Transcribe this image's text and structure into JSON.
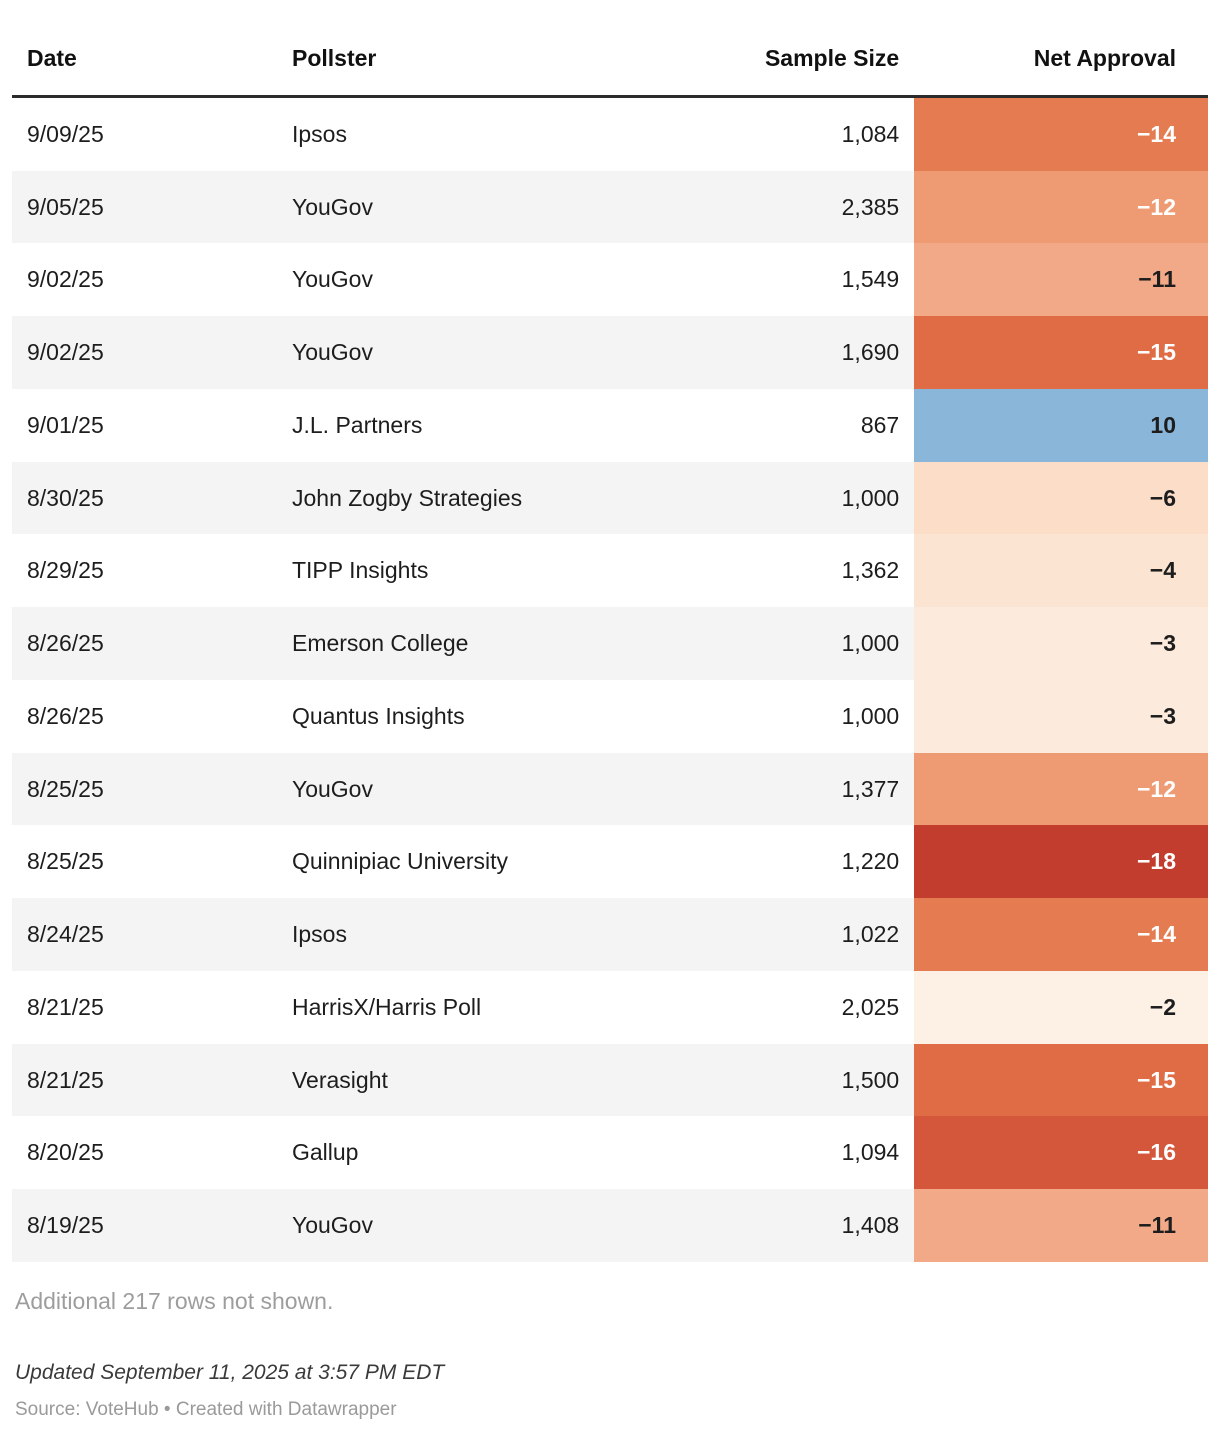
{
  "chart_data": {
    "type": "table",
    "columns": [
      "Date",
      "Pollster",
      "Sample Size",
      "Net Approval"
    ],
    "rows": [
      {
        "date": "9/09/25",
        "pollster": "Ipsos",
        "sample_size": "1,084",
        "net_approval": -14,
        "net_approval_display": "−14",
        "cell_color": "#e57c51",
        "text_color": "#ffffff"
      },
      {
        "date": "9/05/25",
        "pollster": "YouGov",
        "sample_size": "2,385",
        "net_approval": -12,
        "net_approval_display": "−12",
        "cell_color": "#ee9b73",
        "text_color": "#ffffff"
      },
      {
        "date": "9/02/25",
        "pollster": "YouGov",
        "sample_size": "1,549",
        "net_approval": -11,
        "net_approval_display": "−11",
        "cell_color": "#f2a987",
        "text_color": "#1d1d1d"
      },
      {
        "date": "9/02/25",
        "pollster": "YouGov",
        "sample_size": "1,690",
        "net_approval": -15,
        "net_approval_display": "−15",
        "cell_color": "#e06c45",
        "text_color": "#ffffff"
      },
      {
        "date": "9/01/25",
        "pollster": "J.L. Partners",
        "sample_size": "867",
        "net_approval": 10,
        "net_approval_display": "10",
        "cell_color": "#8ab7d9",
        "text_color": "#1d1d1d"
      },
      {
        "date": "8/30/25",
        "pollster": "John Zogby Strategies",
        "sample_size": "1,000",
        "net_approval": -6,
        "net_approval_display": "−6",
        "cell_color": "#fbddc8",
        "text_color": "#1d1d1d"
      },
      {
        "date": "8/29/25",
        "pollster": "TIPP Insights",
        "sample_size": "1,362",
        "net_approval": -4,
        "net_approval_display": "−4",
        "cell_color": "#fbe4d2",
        "text_color": "#1d1d1d"
      },
      {
        "date": "8/26/25",
        "pollster": "Emerson College",
        "sample_size": "1,000",
        "net_approval": -3,
        "net_approval_display": "−3",
        "cell_color": "#fcebdc",
        "text_color": "#1d1d1d"
      },
      {
        "date": "8/26/25",
        "pollster": "Quantus Insights",
        "sample_size": "1,000",
        "net_approval": -3,
        "net_approval_display": "−3",
        "cell_color": "#fcebdc",
        "text_color": "#1d1d1d"
      },
      {
        "date": "8/25/25",
        "pollster": "YouGov",
        "sample_size": "1,377",
        "net_approval": -12,
        "net_approval_display": "−12",
        "cell_color": "#ee9b73",
        "text_color": "#ffffff"
      },
      {
        "date": "8/25/25",
        "pollster": "Quinnipiac University",
        "sample_size": "1,220",
        "net_approval": -18,
        "net_approval_display": "−18",
        "cell_color": "#c23d2e",
        "text_color": "#ffffff"
      },
      {
        "date": "8/24/25",
        "pollster": "Ipsos",
        "sample_size": "1,022",
        "net_approval": -14,
        "net_approval_display": "−14",
        "cell_color": "#e57c51",
        "text_color": "#ffffff"
      },
      {
        "date": "8/21/25",
        "pollster": "HarrisX/Harris Poll",
        "sample_size": "2,025",
        "net_approval": -2,
        "net_approval_display": "−2",
        "cell_color": "#fdf1e6",
        "text_color": "#1d1d1d"
      },
      {
        "date": "8/21/25",
        "pollster": "Verasight",
        "sample_size": "1,500",
        "net_approval": -15,
        "net_approval_display": "−15",
        "cell_color": "#e06c45",
        "text_color": "#ffffff"
      },
      {
        "date": "8/20/25",
        "pollster": "Gallup",
        "sample_size": "1,094",
        "net_approval": -16,
        "net_approval_display": "−16",
        "cell_color": "#d4573c",
        "text_color": "#ffffff"
      },
      {
        "date": "8/19/25",
        "pollster": "YouGov",
        "sample_size": "1,408",
        "net_approval": -11,
        "net_approval_display": "−11",
        "cell_color": "#f2a987",
        "text_color": "#1d1d1d"
      }
    ],
    "legend_position": "none",
    "grid": false,
    "colors": {
      "negative_strong": "#c23d2e",
      "negative_light": "#fdf1e6",
      "positive": "#8ab7d9",
      "row_stripe": "#f4f4f4",
      "header_rule": "#2b2b2b"
    }
  },
  "footer": {
    "additional_rows_note": "Additional 217 rows not shown.",
    "updated": "Updated September 11, 2025 at 3:57 PM EDT",
    "source": "Source: VoteHub • Created with Datawrapper"
  }
}
